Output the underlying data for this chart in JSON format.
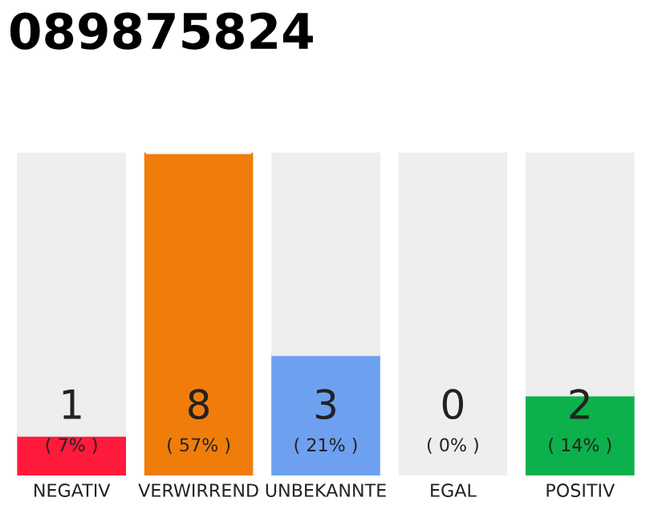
{
  "chart_data": {
    "type": "bar",
    "title": "089875824",
    "stacked": true,
    "categories": [
      "NEGATIV",
      "VERWIRREND",
      "UNBEKANNTE",
      "EGAL",
      "POSITIV"
    ],
    "series": [
      {
        "colors": [
          "#ff1a3c",
          "#f07d0a",
          "#6ea0f0",
          "#aaaaaa",
          "#0db14b"
        ],
        "values": [
          1,
          8,
          3,
          0,
          2
        ],
        "value_labels": [
          "1\n( 7% )",
          "8\n( 57% )",
          "3\n( 21% )",
          "0\n( 0% )",
          "2\n( 14% )"
        ]
      },
      {
        "color": "#eeeeee",
        "values": [
          7,
          0,
          5,
          8,
          6
        ]
      }
    ],
    "ylim": [
      0,
      8
    ],
    "tick_labels": "x",
    "grid": false
  }
}
